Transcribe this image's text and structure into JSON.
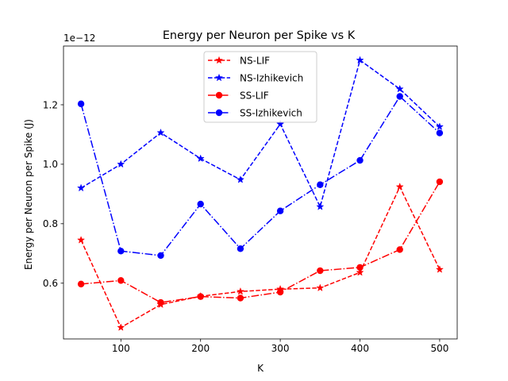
{
  "chart_data": {
    "type": "line",
    "title": "Energy per Neuron per Spike vs K",
    "xlabel": "K",
    "ylabel": "Energy per Neuron per Spike (J)",
    "y_offset_label": "1e−12",
    "xlim": [
      28,
      522
    ],
    "ylim": [
      0.4125,
      1.3975
    ],
    "x_ticks": [
      100,
      200,
      300,
      400,
      500
    ],
    "x_tick_labels": [
      "100",
      "200",
      "300",
      "400",
      "500"
    ],
    "y_ticks": [
      0.6,
      0.8,
      1.0,
      1.2
    ],
    "y_tick_labels": [
      "0.6",
      "0.8",
      "1.0",
      "1.2"
    ],
    "grid": false,
    "legend_position": "upper center",
    "x": [
      50,
      100,
      150,
      200,
      250,
      300,
      350,
      400,
      450,
      500
    ],
    "series": [
      {
        "name": "NS-LIF",
        "color": "#ff0000",
        "dash": "dashed",
        "marker": "star",
        "values": [
          0.745,
          0.451,
          0.528,
          0.556,
          0.572,
          0.58,
          0.584,
          0.636,
          0.924,
          0.646
        ]
      },
      {
        "name": "NS-Izhikevich",
        "color": "#0000ff",
        "dash": "dashed",
        "marker": "star",
        "values": [
          0.92,
          1.0,
          1.106,
          1.019,
          0.948,
          1.135,
          0.857,
          1.35,
          1.253,
          1.126
        ]
      },
      {
        "name": "SS-LIF",
        "color": "#ff0000",
        "dash": "dashdot",
        "marker": "circle",
        "values": [
          0.597,
          0.609,
          0.535,
          0.555,
          0.55,
          0.57,
          0.642,
          0.653,
          0.713,
          0.941
        ]
      },
      {
        "name": "SS-Izhikevich",
        "color": "#0000ff",
        "dash": "dashdot",
        "marker": "circle",
        "values": [
          1.203,
          0.708,
          0.693,
          0.866,
          0.716,
          0.843,
          0.931,
          1.013,
          1.228,
          1.105
        ]
      }
    ]
  }
}
